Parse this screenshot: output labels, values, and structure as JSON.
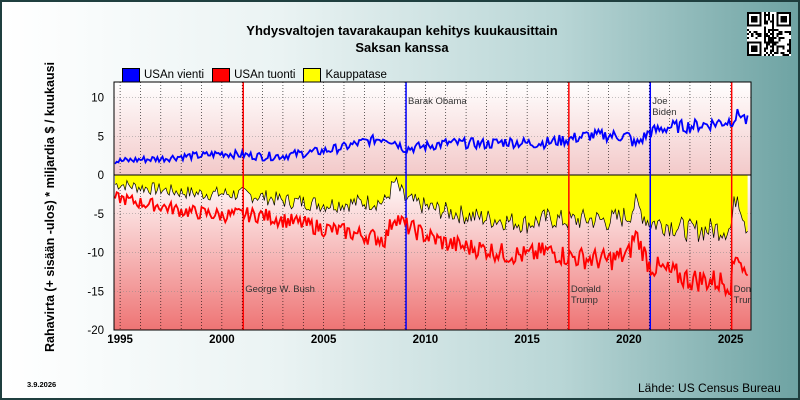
{
  "chart_data": {
    "type": "line",
    "title_line1": "Yhdysvaltojen tavarakaupan kehitys kuukausittain",
    "title_line2": "Saksan kanssa",
    "ylabel": "Rahavirta (+ sisään -ulos)  * miljardia $ / kuukausi",
    "xlabel": "",
    "xlim": [
      1994.7,
      2026.0
    ],
    "ylim": [
      -20,
      12
    ],
    "yticks": [
      10,
      5,
      0,
      -5,
      -10,
      -15,
      -20
    ],
    "xticks": [
      1995,
      2000,
      2005,
      2010,
      2015,
      2020,
      2025
    ],
    "grid": true,
    "legend_position": "top-left",
    "series": [
      {
        "name": "USAn vienti",
        "color": "#0000ff",
        "x": [
          1995,
          1996,
          1997,
          1998,
          1999,
          2000,
          2001,
          2002,
          2003,
          2004,
          2005,
          2006,
          2007,
          2008,
          2008.5,
          2009,
          2010,
          2011,
          2012,
          2013,
          2014,
          2015,
          2016,
          2017,
          2018,
          2019,
          2020,
          2020.3,
          2021,
          2022,
          2023,
          2024,
          2025,
          2025.5,
          2025.8
        ],
        "values": [
          1.8,
          2.0,
          2.1,
          2.4,
          2.5,
          2.8,
          2.6,
          2.4,
          2.5,
          2.8,
          3.1,
          3.6,
          4.3,
          4.8,
          4.3,
          3.4,
          3.7,
          4.1,
          4.1,
          4.0,
          4.3,
          4.1,
          4.2,
          4.6,
          5.1,
          5.1,
          5.0,
          3.8,
          5.5,
          6.2,
          6.3,
          6.6,
          7.0,
          8.0,
          6.8
        ]
      },
      {
        "name": "USAn tuonti",
        "color": "#ff0000",
        "x": [
          1995,
          1996,
          1997,
          1998,
          1999,
          2000,
          2001,
          2002,
          2003,
          2004,
          2005,
          2006,
          2007,
          2008,
          2008.5,
          2009,
          2010,
          2011,
          2012,
          2013,
          2014,
          2015,
          2016,
          2017,
          2018,
          2019,
          2020,
          2020.3,
          2021,
          2022,
          2023,
          2024,
          2025,
          2025.3,
          2025.8
        ],
        "values": [
          -3.0,
          -3.6,
          -4.0,
          -4.6,
          -4.9,
          -5.2,
          -5.1,
          -5.2,
          -5.8,
          -6.3,
          -6.9,
          -7.3,
          -7.8,
          -8.3,
          -5.2,
          -6.5,
          -7.8,
          -8.8,
          -9.3,
          -9.6,
          -10.2,
          -10.4,
          -9.8,
          -10.5,
          -10.8,
          -11.0,
          -10.2,
          -7.5,
          -11.6,
          -12.6,
          -13.5,
          -13.6,
          -13.9,
          -9.5,
          -13.5
        ]
      },
      {
        "name": "Kauppatase",
        "color": "#ffff00",
        "x": [
          1995,
          1996,
          1997,
          1998,
          1999,
          2000,
          2001,
          2002,
          2003,
          2004,
          2005,
          2006,
          2007,
          2008,
          2008.5,
          2009,
          2010,
          2011,
          2012,
          2013,
          2014,
          2015,
          2016,
          2017,
          2018,
          2019,
          2020,
          2020.3,
          2021,
          2022,
          2023,
          2024,
          2025,
          2025.3,
          2025.8
        ],
        "values": [
          -1.2,
          -1.6,
          -1.9,
          -2.2,
          -2.4,
          -2.4,
          -2.5,
          -2.8,
          -3.3,
          -3.5,
          -3.8,
          -3.7,
          -3.5,
          -3.5,
          -0.9,
          -3.1,
          -4.1,
          -4.7,
          -5.2,
          -5.6,
          -5.9,
          -6.3,
          -5.6,
          -5.9,
          -5.7,
          -5.9,
          -5.2,
          -3.7,
          -6.1,
          -6.4,
          -7.2,
          -7.0,
          -6.9,
          -2.0,
          -6.7
        ]
      }
    ],
    "presidents": [
      {
        "name": "George W. Bush",
        "x": 2001.05,
        "color": "#ff0000",
        "label_row": "bottom"
      },
      {
        "name": "Barak Obama",
        "x": 2009.05,
        "color": "#0000ff",
        "label_row": "top"
      },
      {
        "name": "Donald\nTrump",
        "x": 2017.05,
        "color": "#ff0000",
        "label_row": "bottom"
      },
      {
        "name": "Joe\nBiden",
        "x": 2021.05,
        "color": "#0000ff",
        "label_row": "top"
      },
      {
        "name": "Donald\nTrump",
        "x": 2025.05,
        "color": "#ff0000",
        "label_row": "bottom"
      }
    ]
  },
  "legend": {
    "export_label": "USAn vienti",
    "import_label": "USAn tuonti",
    "balance_label": "Kauppatase",
    "export_color": "#0000ff",
    "import_color": "#ff0000",
    "balance_color": "#ffff00"
  },
  "footer": {
    "date": "3.9.2026",
    "source": "Lähde: US Census Bureau"
  },
  "qr_icon": "qr-code-icon"
}
